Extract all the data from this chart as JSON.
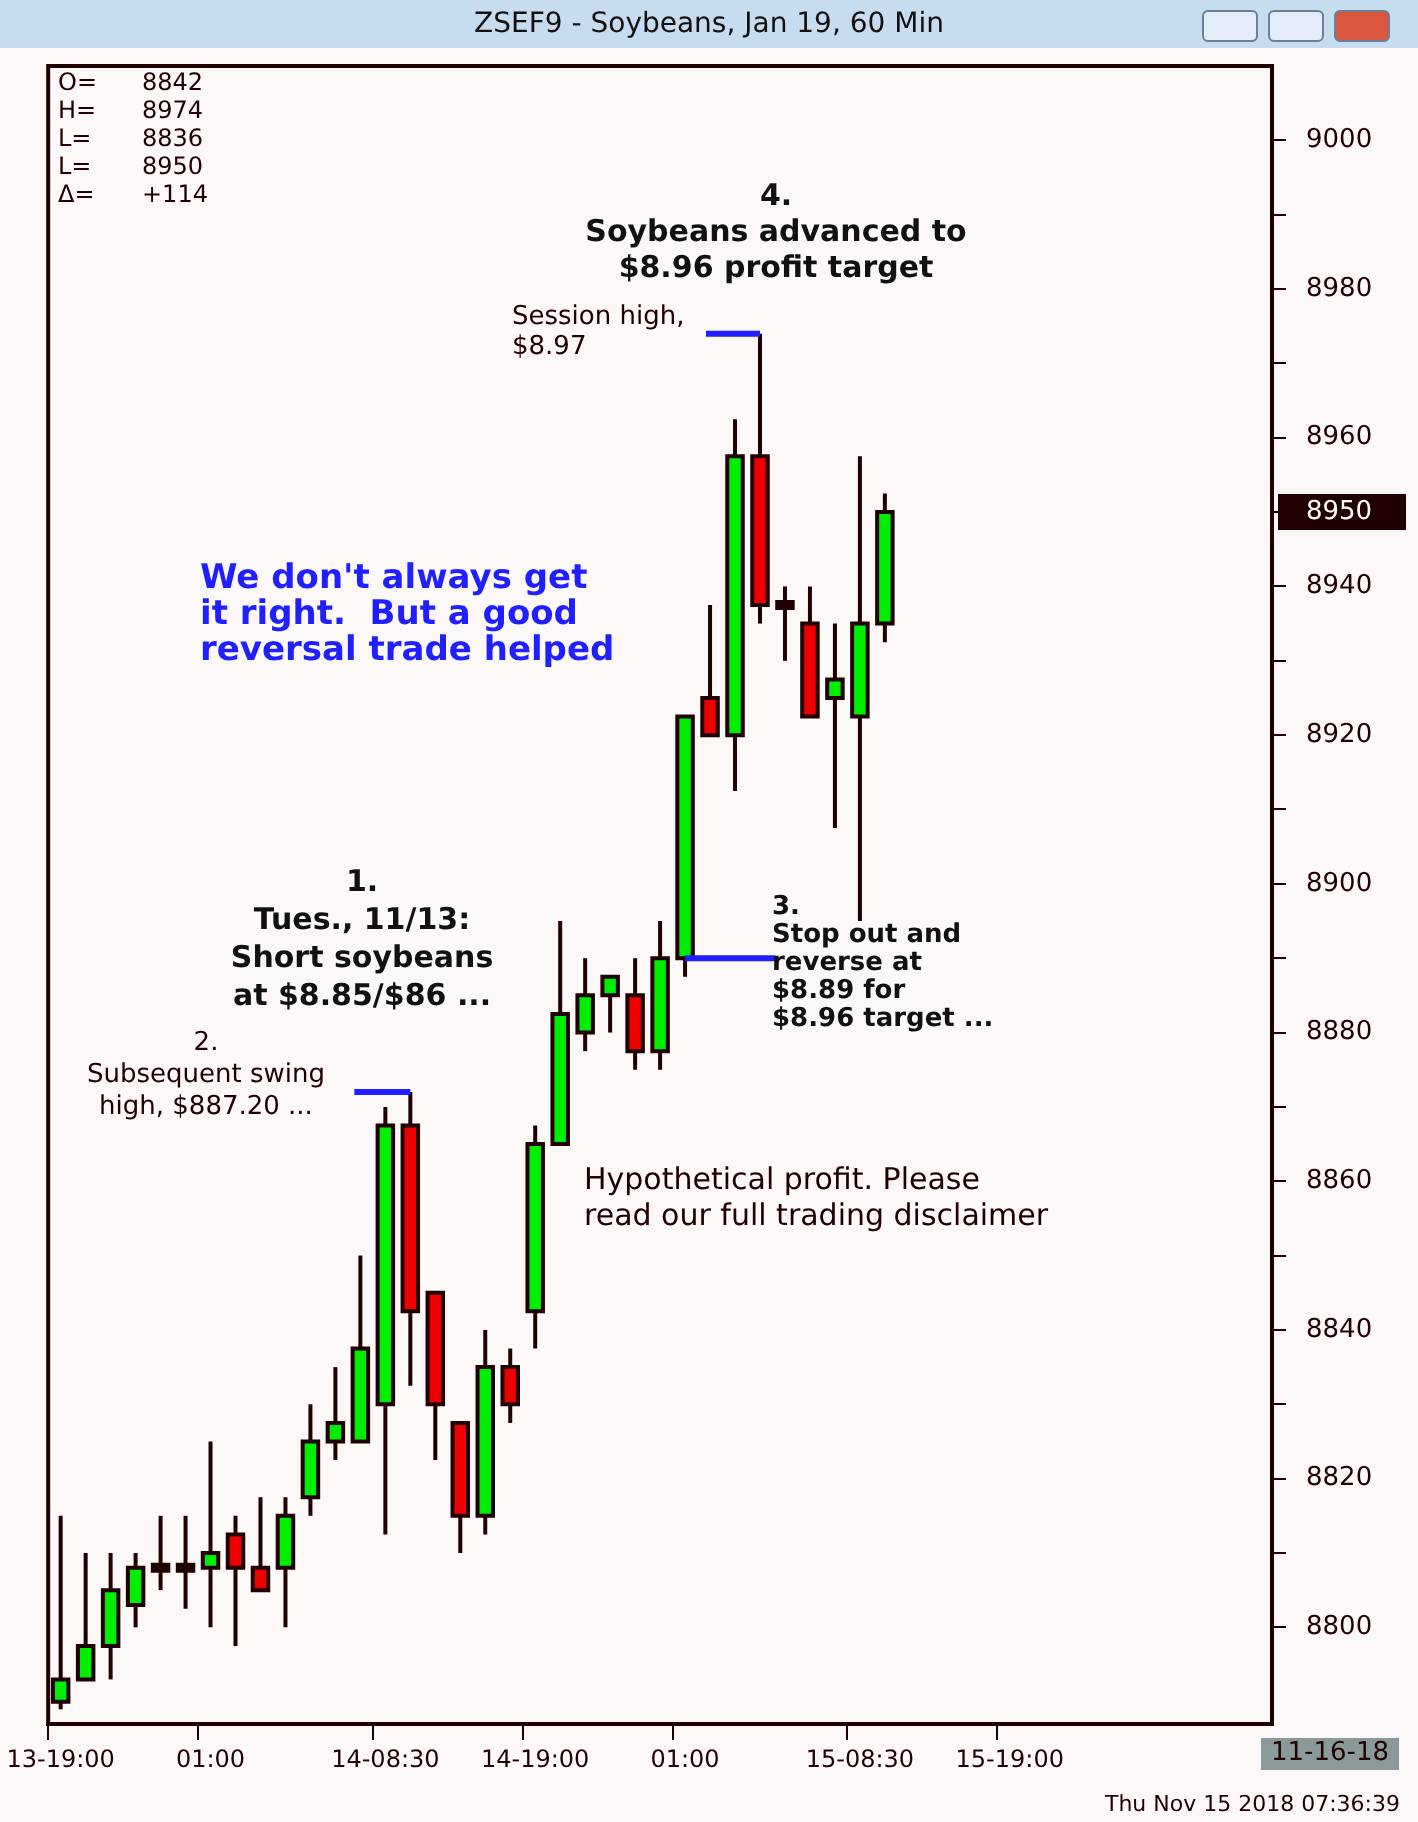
{
  "chart_data": {
    "type": "candlestick",
    "title": "ZSEF9 - Soybeans, Jan 19, 60 Min",
    "categories": [
      "13-19:00",
      null,
      null,
      null,
      null,
      null,
      "01:00",
      null,
      null,
      null,
      null,
      null,
      null,
      "14-08:30",
      null,
      null,
      null,
      null,
      null,
      "14-19:00",
      null,
      null,
      null,
      null,
      null,
      "01:00",
      null,
      null,
      null,
      null,
      null,
      null,
      "15-08:30",
      null,
      null,
      null,
      null,
      null,
      "15-19:00",
      null,
      null,
      null,
      null,
      null,
      null,
      null,
      null,
      null,
      null
    ],
    "ohlc": [
      [
        8790,
        8815,
        8789,
        8793
      ],
      [
        8793,
        8810,
        8793,
        8797.5
      ],
      [
        8797.5,
        8810,
        8793,
        8805
      ],
      [
        8803,
        8810,
        8800,
        8808
      ],
      [
        8808,
        8815,
        8805,
        8808
      ],
      [
        8808,
        8815,
        8802.5,
        8808
      ],
      [
        8808,
        8825,
        8800,
        8810
      ],
      [
        8812.5,
        8815,
        8797.5,
        8808
      ],
      [
        8808,
        8817.5,
        8805,
        8805
      ],
      [
        8808,
        8817.5,
        8800,
        8815
      ],
      [
        8817.5,
        8830,
        8815,
        8825
      ],
      [
        8825,
        8835,
        8822.5,
        8827.5
      ],
      [
        8825,
        8850,
        8825,
        8837.5
      ],
      [
        8830,
        8870,
        8812.5,
        8867.5
      ],
      [
        8867.5,
        8872,
        8832.5,
        8842.5
      ],
      [
        8845,
        8845,
        8822.5,
        8830
      ],
      [
        8827.5,
        8827.5,
        8810,
        8815
      ],
      [
        8815,
        8840,
        8812.5,
        8835
      ],
      [
        8835,
        8837.5,
        8827.5,
        8830
      ],
      [
        8842.5,
        8867.5,
        8837.5,
        8865
      ],
      [
        8865,
        8895,
        8865,
        8882.5
      ],
      [
        8880,
        8890,
        8877.5,
        8885
      ],
      [
        8885,
        8887.5,
        8880,
        8887.5
      ],
      [
        8885,
        8890,
        8875,
        8877.5
      ],
      [
        8877.5,
        8895,
        8875,
        8890
      ],
      [
        8890,
        8922.5,
        8887.5,
        8922.5
      ],
      [
        8925,
        8937.5,
        8920,
        8920
      ],
      [
        8920,
        8962.5,
        8912.5,
        8957.5
      ],
      [
        8957.5,
        8974,
        8935,
        8937.5
      ],
      [
        8937.5,
        8940,
        8930,
        8937.5
      ],
      [
        8935,
        8940,
        8922.5,
        8922.5
      ],
      [
        8925,
        8935,
        8907.5,
        8927.5
      ],
      [
        8922.5,
        8957.5,
        8895,
        8935
      ],
      [
        8935,
        8952.5,
        8932.5,
        8950
      ],
      null,
      null,
      null,
      null,
      null,
      null,
      null,
      null,
      null,
      null,
      null,
      null,
      null,
      null,
      null
    ],
    "ylim": [
      8787,
      9010
    ],
    "yticks": [
      8800,
      {
        "value": 8810,
        "label": null
      },
      8820,
      {
        "value": 8830,
        "label": null
      },
      8840,
      {
        "value": 8850,
        "label": null
      },
      8860,
      {
        "value": 8870,
        "label": null
      },
      8880,
      {
        "value": 8890,
        "label": null
      },
      8900,
      {
        "value": 8910,
        "label": null
      },
      8920,
      {
        "value": 8930,
        "label": null
      },
      8940,
      {
        "value": 8950,
        "label": null
      },
      8960,
      {
        "value": 8970,
        "label": null
      },
      8980,
      {
        "value": 8990,
        "label": null
      },
      9000
    ],
    "legend": false,
    "ref_lines": [
      {
        "axis": "y",
        "value": 8974,
        "label": "Session high,\n$8.97",
        "color": "#1f1fff"
      },
      {
        "axis": "y",
        "value": 8872,
        "label": "2.\nSubsequent swing\nhigh, $887.20 ...",
        "color": "#1f1fff"
      },
      {
        "axis": "y",
        "value": 8890,
        "label": "3.\nStop out and\nreverse at\n$8.89 for\n$8.96 target ...",
        "color": "#1f1fff"
      }
    ],
    "annotations": [
      "O= 8842",
      "H= 8974",
      "L= 8836",
      "L= 8950",
      "Δ= +114",
      "4.\nSoybeans advanced to\n$8.96 profit target",
      "We don't always get\nit right.  But a good\nreversal trade helped",
      "1.\nTues., 11/13:\nShort soybeans\nat $8.85/$86 ...",
      "Hypothetical profit. Please\nread our full trading disclaimer",
      "8950",
      "11-16-18",
      "Thu Nov 15 2018 07:36:39"
    ]
  }
}
